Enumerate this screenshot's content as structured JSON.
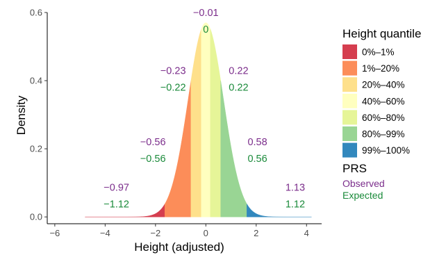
{
  "chart_data": {
    "type": "area",
    "xlabel": "Height (adjusted)",
    "ylabel": "Density",
    "xlim": [
      -6.3,
      4.6
    ],
    "ylim": [
      -0.02,
      0.6
    ],
    "x_ticks": [
      -6,
      -4,
      -2,
      0,
      2,
      4
    ],
    "y_ticks": [
      0.0,
      0.2,
      0.4,
      0.6
    ],
    "x_tick_labels": [
      "−6",
      "−4",
      "−2",
      "0",
      "2",
      "4"
    ],
    "y_tick_labels": [
      "0.0",
      "0.2",
      "0.4",
      "0.6"
    ],
    "distribution": {
      "kind": "normal",
      "mean": 0,
      "sd": 0.7,
      "x_min": -4.8,
      "x_max": 4.2,
      "peak_density": 0.57
    },
    "grid": false,
    "legend_position": "right",
    "series": [
      {
        "name": "0%–1%",
        "x_from": -4.8,
        "x_to": -1.63,
        "color": "#d53e4f"
      },
      {
        "name": "1%–20%",
        "x_from": -1.63,
        "x_to": -0.59,
        "color": "#fc8d59"
      },
      {
        "name": "20%–40%",
        "x_from": -0.59,
        "x_to": -0.18,
        "color": "#fee08b"
      },
      {
        "name": "40%–60%",
        "x_from": -0.18,
        "x_to": 0.18,
        "color": "#ffffbf"
      },
      {
        "name": "60%–80%",
        "x_from": 0.18,
        "x_to": 0.59,
        "color": "#e6f598"
      },
      {
        "name": "80%–99%",
        "x_from": 0.59,
        "x_to": 1.63,
        "color": "#99d594"
      },
      {
        "name": "99%–100%",
        "x_from": 1.63,
        "x_to": 4.2,
        "color": "#3288bd"
      }
    ],
    "annotations": [
      {
        "x": -3.55,
        "y": 0.077,
        "observed": "−0.97",
        "expected": "−1.12"
      },
      {
        "x": -2.1,
        "y": 0.21,
        "observed": "−0.56",
        "expected": "−0.56"
      },
      {
        "x": -1.3,
        "y": 0.42,
        "observed": "−0.23",
        "expected": "−0.22"
      },
      {
        "x": 0.0,
        "y": 0.59,
        "observed": "−0.01",
        "expected": "0"
      },
      {
        "x": 1.3,
        "y": 0.42,
        "observed": "0.22",
        "expected": "0.22"
      },
      {
        "x": 2.05,
        "y": 0.21,
        "observed": "0.58",
        "expected": "0.56"
      },
      {
        "x": 3.55,
        "y": 0.077,
        "observed": "1.13",
        "expected": "1.12"
      }
    ],
    "legend": {
      "title": "Height quantile",
      "prs_title": "PRS",
      "prs_items": [
        {
          "label": "Observed",
          "color": "#7b2d8b"
        },
        {
          "label": "Expected",
          "color": "#1a8a3a"
        }
      ]
    }
  }
}
